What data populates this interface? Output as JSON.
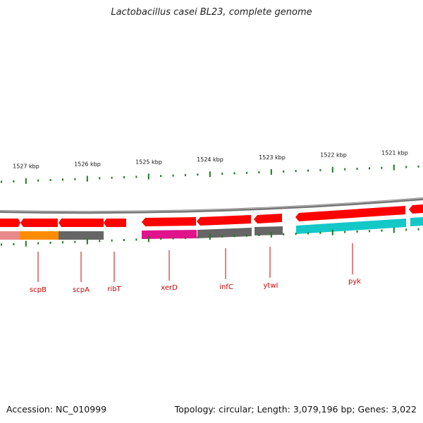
{
  "header": {
    "title": "Lactobacillus casei BL23, complete genome"
  },
  "footer": {
    "accession": "Accession: NC_010999",
    "summary": "Topology: circular; Length: 3,079,196 bp; Genes: 3,022"
  },
  "ruler": {
    "unit": "kbp",
    "ticks": [
      {
        "kbp": 1527,
        "label": "1527 kbp"
      },
      {
        "kbp": 1526,
        "label": "1526 kbp"
      },
      {
        "kbp": 1525,
        "label": "1525 kbp"
      },
      {
        "kbp": 1524,
        "label": "1524 kbp"
      },
      {
        "kbp": 1523,
        "label": "1523 kbp"
      },
      {
        "kbp": 1522,
        "label": "1522 kbp"
      },
      {
        "kbp": 1521,
        "label": "1521 kbp"
      }
    ]
  },
  "colors": {
    "cds": "#ff0000",
    "backbone": "#888888",
    "orange": "#ff8c00",
    "grey": "#666666",
    "magenta": "#e0128c",
    "cyan": "#14c8c8",
    "pink": "#e88a8a",
    "tick": "#1a7a1a",
    "label": "#cc0000"
  },
  "genes": [
    {
      "name": "scpB"
    },
    {
      "name": "scpA"
    },
    {
      "name": "ribT"
    },
    {
      "name": "xerD"
    },
    {
      "name": "infC"
    },
    {
      "name": "ytwI"
    },
    {
      "name": "pyk"
    }
  ]
}
